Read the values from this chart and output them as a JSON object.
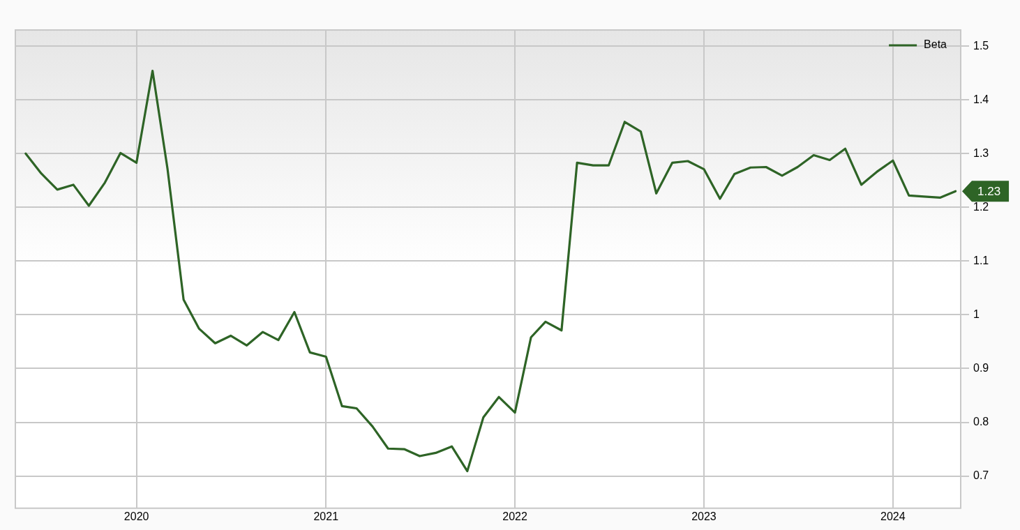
{
  "chart_data": {
    "type": "line",
    "x": [
      "2019-06",
      "2019-07",
      "2019-08",
      "2019-09",
      "2019-10",
      "2019-11",
      "2019-12",
      "2020-01",
      "2020-02",
      "2020-03",
      "2020-04",
      "2020-05",
      "2020-06",
      "2020-07",
      "2020-08",
      "2020-09",
      "2020-10",
      "2020-11",
      "2020-12",
      "2021-01",
      "2021-02",
      "2021-03",
      "2021-04",
      "2021-05",
      "2021-06",
      "2021-07",
      "2021-08",
      "2021-09",
      "2021-10",
      "2021-11",
      "2021-12",
      "2022-01",
      "2022-02",
      "2022-03",
      "2022-04",
      "2022-05",
      "2022-06",
      "2022-07",
      "2022-08",
      "2022-09",
      "2022-10",
      "2022-11",
      "2022-12",
      "2023-01",
      "2023-02",
      "2023-03",
      "2023-04",
      "2023-05",
      "2023-06",
      "2023-07",
      "2023-08",
      "2023-09",
      "2023-10",
      "2023-11",
      "2023-12",
      "2024-01",
      "2024-02",
      "2024-03",
      "2024-04",
      "2024-05"
    ],
    "series": [
      {
        "name": "Beta",
        "color": "#2e6426",
        "values": [
          1.3,
          1.263,
          1.233,
          1.242,
          1.203,
          1.246,
          1.301,
          1.283,
          1.454,
          1.271,
          1.028,
          0.974,
          0.947,
          0.961,
          0.943,
          0.968,
          0.953,
          1.005,
          0.93,
          0.922,
          0.83,
          0.826,
          0.792,
          0.751,
          0.75,
          0.737,
          0.743,
          0.755,
          0.709,
          0.809,
          0.847,
          0.818,
          0.958,
          0.987,
          0.971,
          1.283,
          1.278,
          1.278,
          1.359,
          1.341,
          1.226,
          1.283,
          1.286,
          1.271,
          1.216,
          1.262,
          1.274,
          1.275,
          1.259,
          1.275,
          1.297,
          1.288,
          1.309,
          1.242,
          1.266,
          1.287,
          1.222,
          1.22,
          1.218,
          1.23
        ]
      }
    ],
    "xlim": [
      "2019-05-12",
      "2024-05-11"
    ],
    "xticks": [
      "2020",
      "2021",
      "2022",
      "2023",
      "2024"
    ],
    "ylim": [
      0.64,
      1.53
    ],
    "yticks": [
      0.7,
      0.8,
      0.9,
      1,
      1.1,
      1.2,
      1.3,
      1.4,
      1.5
    ],
    "annotations": [
      {
        "text": "1.23",
        "x": "2024-05",
        "y": 1.23
      }
    ],
    "grid": true,
    "legend": "top right",
    "marker": "none",
    "line_style": "solid"
  }
}
